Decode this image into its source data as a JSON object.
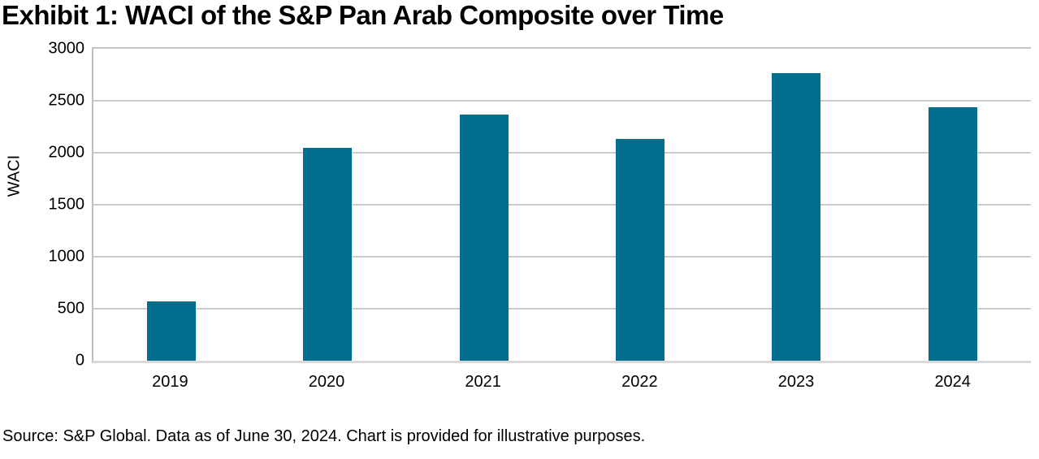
{
  "title": "Exhibit 1: WACI of the S&P Pan Arab Composite over Time",
  "source_note": "Source: S&P Global. Data as of June 30, 2024. Chart is provided for illustrative purposes.",
  "chart_data": {
    "type": "bar",
    "title": "Exhibit 1: WACI of the S&P Pan Arab Composite over Time",
    "categories": [
      "2019",
      "2020",
      "2021",
      "2022",
      "2023",
      "2024"
    ],
    "values": [
      570,
      2045,
      2365,
      2130,
      2765,
      2435
    ],
    "xlabel": "",
    "ylabel": "WACI",
    "ylim": [
      0,
      3000
    ],
    "yticks": [
      0,
      500,
      1000,
      1500,
      2000,
      2500,
      3000
    ],
    "grid": true,
    "legend_position": "none",
    "bar_color": "#006E8C",
    "gridline_color": "#CBCBCB",
    "axis_line_color": "#BFBFBF",
    "baseline_color": "#D9D9D9"
  }
}
